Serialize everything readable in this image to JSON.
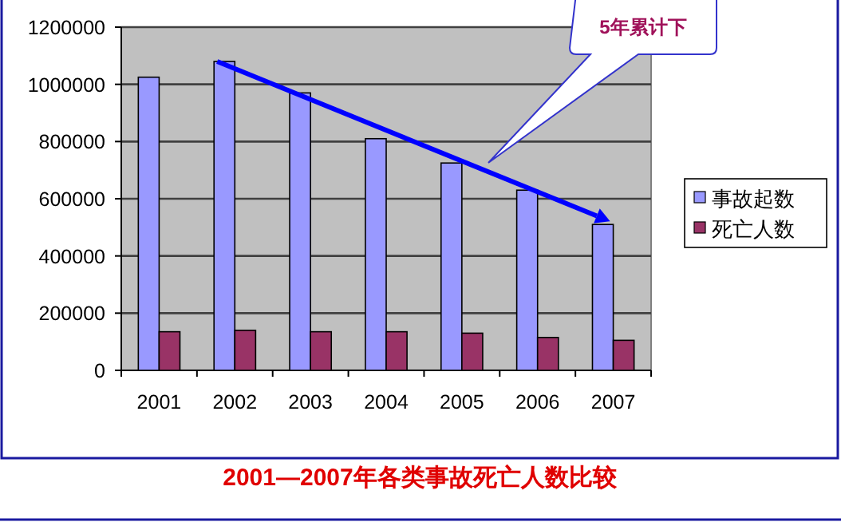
{
  "chart_data": {
    "type": "bar",
    "title": "2001—2007年各类事故死亡人数比较",
    "categories": [
      "2001",
      "2002",
      "2003",
      "2004",
      "2005",
      "2006",
      "2007"
    ],
    "series": [
      {
        "name": "事故起数",
        "color": "#9999ff",
        "values": [
          1025000,
          1080000,
          970000,
          810000,
          725000,
          630000,
          510000
        ]
      },
      {
        "name": "死亡人数",
        "color": "#993366",
        "values": [
          135000,
          140000,
          135000,
          135000,
          130000,
          115000,
          105000
        ]
      }
    ],
    "ylim": [
      0,
      1200000
    ],
    "yticks": [
      0,
      200000,
      400000,
      600000,
      800000,
      1000000,
      1200000
    ],
    "grid": "y",
    "legend": "right",
    "annotations": [
      "5年累计下"
    ]
  }
}
